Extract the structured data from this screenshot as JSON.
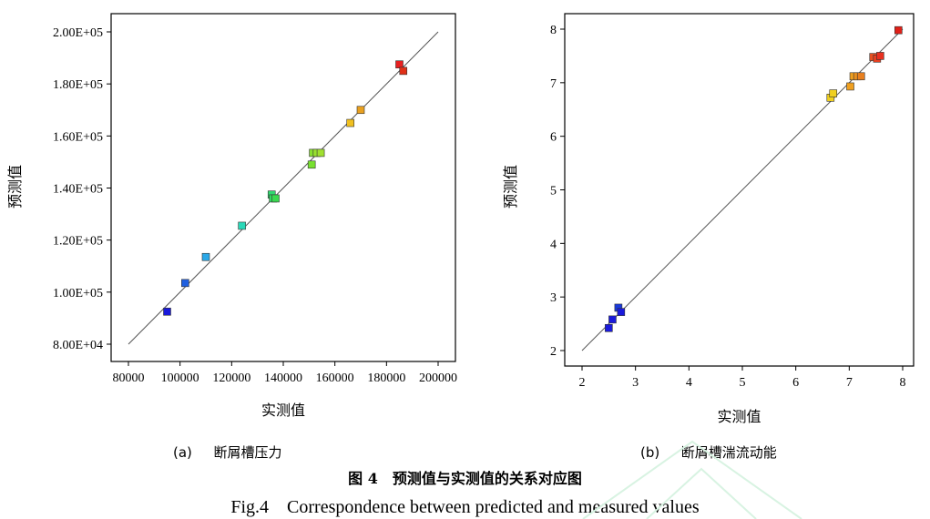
{
  "chart_data": [
    {
      "type": "scatter",
      "title": "",
      "caption_label": "(a)",
      "caption_text": "断屑槽压力",
      "xlabel": "实测值",
      "ylabel": "预测值",
      "xlim": [
        80000,
        200000
      ],
      "ylim": [
        80000,
        200000
      ],
      "x_ticks": [
        80000,
        100000,
        120000,
        140000,
        160000,
        180000,
        200000
      ],
      "x_tick_labels": [
        "80000",
        "100000",
        "120000",
        "140000",
        "160000",
        "180000",
        "200000"
      ],
      "y_ticks": [
        80000,
        100000,
        120000,
        140000,
        160000,
        180000,
        200000
      ],
      "y_tick_labels": [
        "8.00E+04",
        "1.00E+05",
        "1.20E+05",
        "1.40E+05",
        "1.60E+05",
        "1.80E+05",
        "2.00E+05"
      ],
      "reference_line": [
        [
          80000,
          80000
        ],
        [
          200000,
          200000
        ]
      ],
      "points": [
        {
          "x": 95000,
          "y": 92500,
          "color": "#1a1adb"
        },
        {
          "x": 102000,
          "y": 103500,
          "color": "#2060e0"
        },
        {
          "x": 110000,
          "y": 113500,
          "color": "#2aa8e8"
        },
        {
          "x": 124000,
          "y": 125500,
          "color": "#2ad8b8"
        },
        {
          "x": 135500,
          "y": 137500,
          "color": "#30d870"
        },
        {
          "x": 136000,
          "y": 136000,
          "color": "#30d860"
        },
        {
          "x": 137000,
          "y": 136000,
          "color": "#3ad850"
        },
        {
          "x": 151000,
          "y": 149000,
          "color": "#78e030"
        },
        {
          "x": 151500,
          "y": 153500,
          "color": "#88e030"
        },
        {
          "x": 153000,
          "y": 153500,
          "color": "#98e030"
        },
        {
          "x": 154500,
          "y": 153500,
          "color": "#a0e030"
        },
        {
          "x": 166000,
          "y": 165000,
          "color": "#f0c020"
        },
        {
          "x": 170000,
          "y": 170000,
          "color": "#e8a020"
        },
        {
          "x": 185000,
          "y": 187500,
          "color": "#e82020"
        },
        {
          "x": 186500,
          "y": 185000,
          "color": "#e03018"
        }
      ]
    },
    {
      "type": "scatter",
      "title": "",
      "caption_label": "(b)",
      "caption_text": "断屑槽湍流动能",
      "xlabel": "实测值",
      "ylabel": "预测值",
      "xlim": [
        2,
        8
      ],
      "ylim": [
        2,
        8
      ],
      "x_ticks": [
        2,
        3,
        4,
        5,
        6,
        7,
        8
      ],
      "x_tick_labels": [
        "2",
        "3",
        "4",
        "5",
        "6",
        "7",
        "8"
      ],
      "y_ticks": [
        2,
        3,
        4,
        5,
        6,
        7,
        8
      ],
      "y_tick_labels": [
        "2",
        "3",
        "4",
        "5",
        "6",
        "7",
        "8"
      ],
      "reference_line": [
        [
          2,
          2
        ],
        [
          8,
          8
        ]
      ],
      "points": [
        {
          "x": 2.5,
          "y": 2.42,
          "color": "#1a1adb"
        },
        {
          "x": 2.57,
          "y": 2.58,
          "color": "#1a1adb"
        },
        {
          "x": 2.68,
          "y": 2.8,
          "color": "#1a3adb"
        },
        {
          "x": 2.73,
          "y": 2.72,
          "color": "#1a1adb"
        },
        {
          "x": 6.65,
          "y": 6.72,
          "color": "#f0d020"
        },
        {
          "x": 6.7,
          "y": 6.8,
          "color": "#f0d020"
        },
        {
          "x": 7.02,
          "y": 6.93,
          "color": "#f0a020"
        },
        {
          "x": 7.08,
          "y": 7.12,
          "color": "#f0a020"
        },
        {
          "x": 7.15,
          "y": 7.12,
          "color": "#e89020"
        },
        {
          "x": 7.22,
          "y": 7.12,
          "color": "#e88020"
        },
        {
          "x": 7.45,
          "y": 7.48,
          "color": "#e85020"
        },
        {
          "x": 7.52,
          "y": 7.45,
          "color": "#e84020"
        },
        {
          "x": 7.58,
          "y": 7.5,
          "color": "#e83020"
        },
        {
          "x": 7.92,
          "y": 7.98,
          "color": "#e02018"
        }
      ]
    }
  ],
  "figure": {
    "title_cn": "图 4　预测值与实测值的关系对应图",
    "title_en": "Fig.4　Correspondence between predicted and measured values"
  }
}
